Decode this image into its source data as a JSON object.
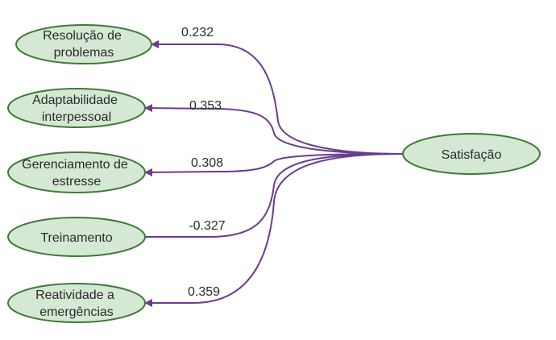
{
  "colors": {
    "node_fill": "#d5e8d4",
    "node_stroke": "#3d7a34",
    "edge": "#6a3d8f",
    "text": "#2b2b2b"
  },
  "target": {
    "label": "Satisfação"
  },
  "sources": [
    {
      "lines": [
        "Resolução de",
        "problemas"
      ],
      "coefficient": "0.232"
    },
    {
      "lines": [
        "Adaptabilidade",
        "interpessoal"
      ],
      "coefficient": "0.353"
    },
    {
      "lines": [
        "Gerenciamento de",
        "estresse"
      ],
      "coefficient": "0.308"
    },
    {
      "lines": [
        "Treinamento"
      ],
      "coefficient": "-0.327"
    },
    {
      "lines": [
        "Reatividade a",
        "emergências"
      ],
      "coefficient": "0.359"
    }
  ]
}
